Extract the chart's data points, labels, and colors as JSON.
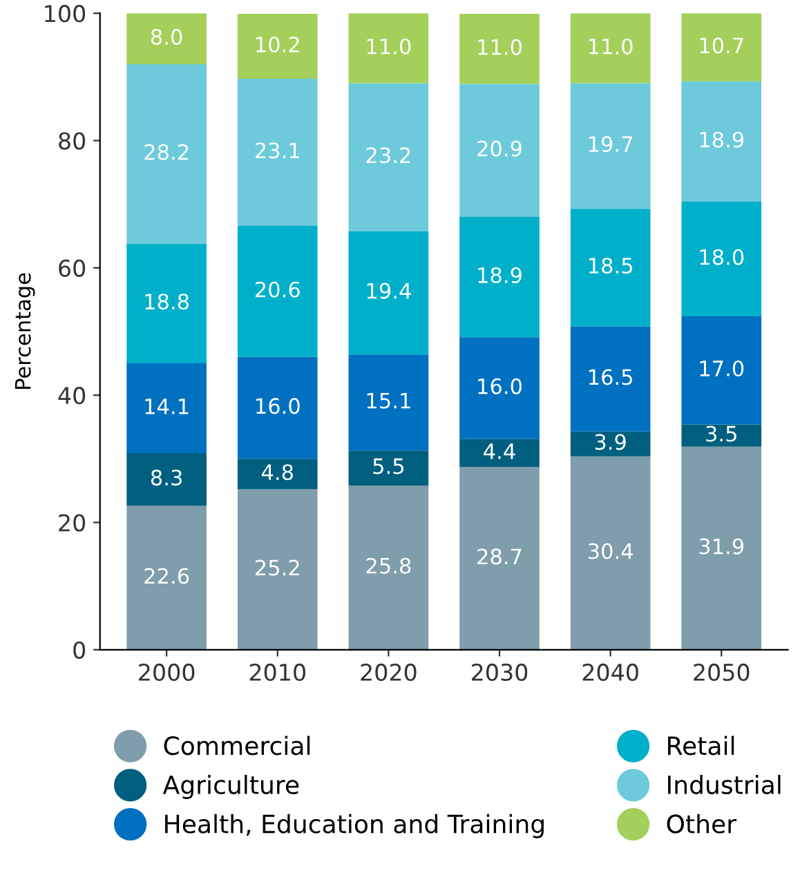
{
  "chart_data": {
    "type": "bar",
    "stacked": true,
    "ylabel": "Percentage",
    "categories": [
      "2000",
      "2010",
      "2020",
      "2030",
      "2040",
      "2050"
    ],
    "series": [
      {
        "name": "Commercial",
        "color": "#7f9dab",
        "values": [
          22.6,
          25.2,
          25.8,
          28.7,
          30.4,
          31.9
        ],
        "value_labels": [
          "22.6",
          "25.2",
          "25.8",
          "28.7",
          "30.4",
          "31.9"
        ]
      },
      {
        "name": "Agriculture",
        "color": "#005f7f",
        "values": [
          8.3,
          4.8,
          5.5,
          4.4,
          3.9,
          3.5
        ],
        "value_labels": [
          "8.3",
          "4.8",
          "5.5",
          "4.4",
          "3.9",
          "3.5"
        ]
      },
      {
        "name": "Health, Education and Training",
        "color": "#0070c0",
        "values": [
          14.1,
          16.0,
          15.1,
          16.0,
          16.5,
          17.0
        ],
        "value_labels": [
          "14.1",
          "16.0",
          "15.1",
          "16.0",
          "16.5",
          "17.0"
        ]
      },
      {
        "name": "Retail",
        "color": "#00afc9",
        "values": [
          18.8,
          20.6,
          19.4,
          18.9,
          18.5,
          18.0
        ],
        "value_labels": [
          "18.8",
          "20.6",
          "19.4",
          "18.9",
          "18.5",
          "18.0"
        ]
      },
      {
        "name": "Industrial",
        "color": "#6ccadb",
        "values": [
          28.2,
          23.1,
          23.2,
          20.9,
          19.7,
          18.9
        ],
        "value_labels": [
          "28.2",
          "23.1",
          "23.2",
          "20.9",
          "19.7",
          "18.9"
        ]
      },
      {
        "name": "Other",
        "color": "#a3cf5a",
        "values": [
          8.0,
          10.2,
          11.0,
          11.0,
          11.0,
          10.7
        ],
        "value_labels": [
          "8.0",
          "10.2",
          "11.0",
          "11.0",
          "11.0",
          "10.7"
        ]
      }
    ],
    "ylim": [
      0,
      100
    ],
    "yticks": [
      0,
      20,
      40,
      60,
      80,
      100
    ],
    "grid": false,
    "legend": "bottom",
    "marker": "circle"
  }
}
